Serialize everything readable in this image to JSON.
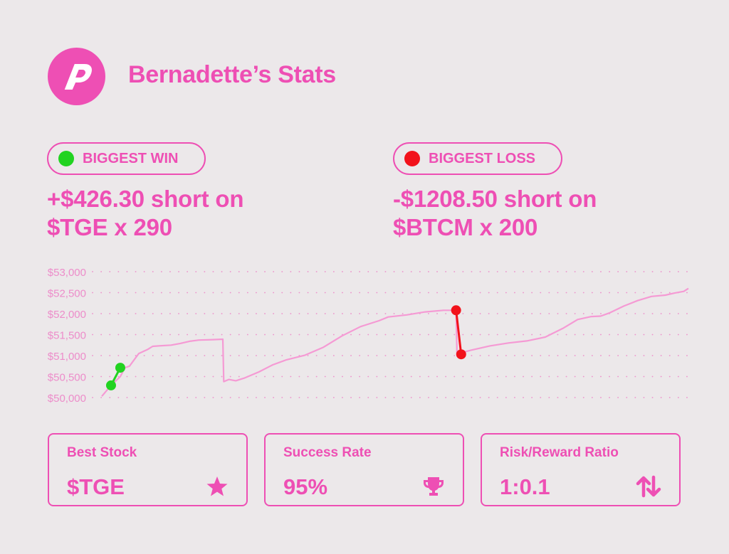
{
  "header": {
    "title": "Bernadette’s Stats",
    "logo_icon": "p-logo-icon"
  },
  "highlights": {
    "win": {
      "label": "BIGGEST WIN",
      "line1": "+$426.30 short on",
      "line2": "$TGE x 290",
      "dot_color": "#22d321"
    },
    "loss": {
      "label": "BIGGEST LOSS",
      "line1": "-$1208.50 short on",
      "line2": "$BTCM x 200",
      "dot_color": "#f2121b"
    }
  },
  "colors": {
    "accent": "#ee4fb4",
    "line": "#f59ad4",
    "win": "#22d321",
    "loss": "#f2121b"
  },
  "chart_data": {
    "type": "line",
    "title": "",
    "xlabel": "",
    "ylabel": "",
    "ylim": [
      50000,
      53000
    ],
    "yticks": [
      50000,
      50500,
      51000,
      51500,
      52000,
      52500,
      53000
    ],
    "ytick_labels": [
      "$50,000",
      "$50,500",
      "$51,000",
      "$51,500",
      "$52,000",
      "$52,500",
      "$53,000"
    ],
    "grid": true,
    "series": [
      {
        "x": [
          0,
          2,
          4,
          5,
          6,
          8,
          10,
          11,
          12.3,
          15,
          17,
          19,
          21,
          24,
          26.2,
          26.4,
          27.5,
          29,
          31,
          34,
          37,
          40,
          44,
          48,
          52,
          56,
          60,
          62,
          66,
          70,
          74,
          76.7,
          76.9,
          80,
          84,
          88,
          92,
          96,
          100,
          103,
          106,
          108,
          110,
          113,
          116,
          119,
          122,
          124,
          126,
          127
        ],
        "y": [
          50030,
          50290,
          50500,
          50710,
          50750,
          51050,
          51150,
          51220,
          51230,
          51250,
          51290,
          51340,
          51370,
          51380,
          51390,
          50380,
          50430,
          50400,
          50470,
          50610,
          50780,
          50900,
          51010,
          51200,
          51470,
          51690,
          51830,
          51920,
          51970,
          52040,
          52080,
          52080,
          51040,
          51130,
          51230,
          51300,
          51350,
          51440,
          51660,
          51860,
          51930,
          51940,
          52020,
          52180,
          52310,
          52410,
          52440,
          52490,
          52530,
          52600
        ]
      }
    ],
    "markers": [
      {
        "kind": "win",
        "x1": 2,
        "y1": 50290,
        "x2": 4,
        "y2": 50710
      },
      {
        "kind": "loss",
        "x1": 76.7,
        "y1": 52080,
        "x2": 77.8,
        "y2": 51030
      }
    ]
  },
  "cards": [
    {
      "label": "Best Stock",
      "value": "$TGE",
      "icon": "star-icon"
    },
    {
      "label": "Success Rate",
      "value": "95%",
      "icon": "trophy-icon"
    },
    {
      "label": "Risk/Reward Ratio",
      "value": "1:0.1",
      "icon": "up-down-arrows-icon"
    }
  ]
}
